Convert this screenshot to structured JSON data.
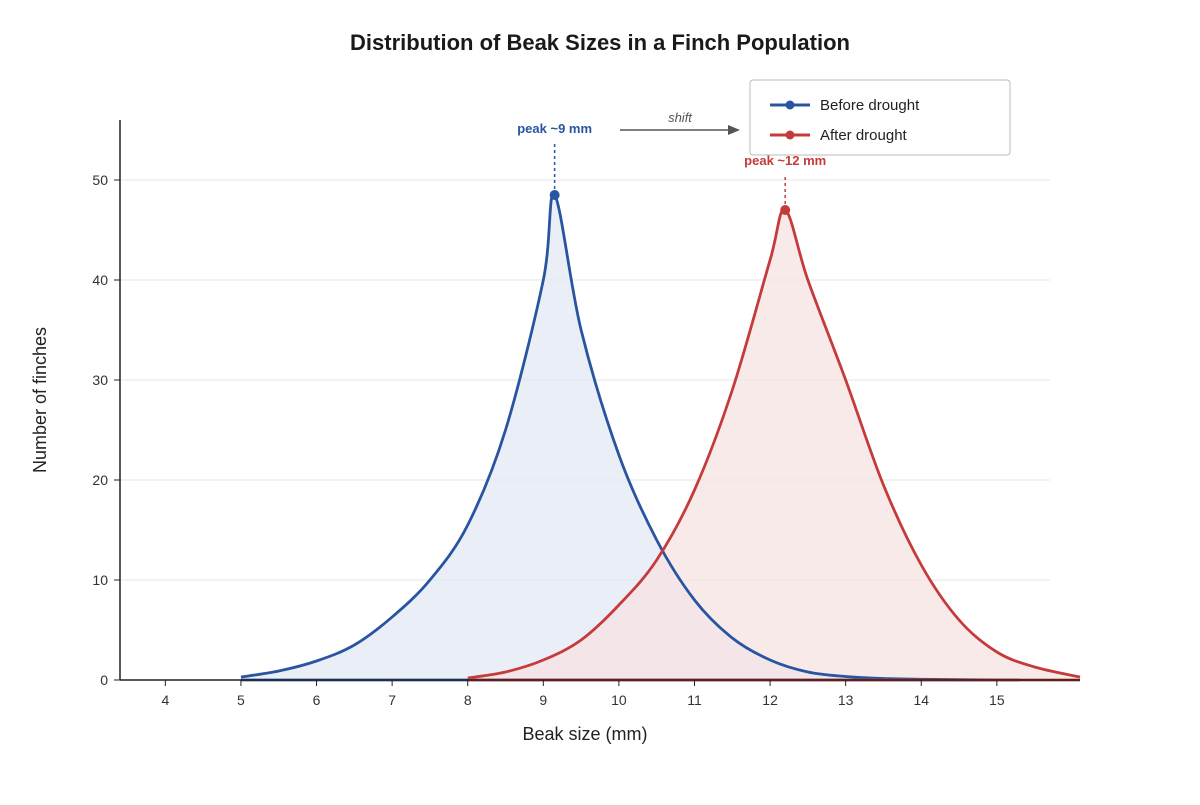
{
  "chart_data": {
    "type": "area",
    "title": "Distribution of Beak Sizes in a Finch Population",
    "xlabel": "Beak size (mm)",
    "ylabel": "Number of finches",
    "xlim": [
      3.4,
      16.1
    ],
    "ylim": [
      0,
      56
    ],
    "xticks": [
      4,
      5,
      6,
      7,
      8,
      9,
      10,
      11,
      12,
      13,
      14,
      15
    ],
    "yticks": [
      0,
      10,
      20,
      30,
      40,
      50
    ],
    "grid": "horizontal",
    "legend_position": "top-right",
    "series": [
      {
        "name": "Before drought",
        "color": "#2955a0",
        "fill": "#e3e9f4",
        "x": [
          5.0,
          5.5,
          6.0,
          6.5,
          7.0,
          7.5,
          8.0,
          8.5,
          9.0,
          9.15,
          9.5,
          10.0,
          10.5,
          11.0,
          11.5,
          12.0,
          12.5,
          13.0,
          13.5,
          14.0,
          14.5,
          15.0,
          15.3
        ],
        "y": [
          0.3,
          0.9,
          1.9,
          3.5,
          6.3,
          10.0,
          15.5,
          25.0,
          40.0,
          48.5,
          35.0,
          22.5,
          14.0,
          8.0,
          4.2,
          2.0,
          0.8,
          0.35,
          0.15,
          0.07,
          0.03,
          0.01,
          0.0
        ]
      },
      {
        "name": "After drought",
        "color": "#c53b3b",
        "fill": "#f7e3e3",
        "x": [
          8.0,
          8.5,
          9.0,
          9.5,
          10.0,
          10.5,
          11.0,
          11.5,
          12.0,
          12.2,
          12.5,
          13.0,
          13.5,
          14.0,
          14.5,
          15.0,
          15.5,
          16.1
        ],
        "y": [
          0.2,
          0.8,
          2.0,
          4.0,
          7.5,
          12.0,
          19.0,
          29.0,
          42.0,
          47.0,
          40.0,
          30.0,
          19.5,
          11.5,
          6.0,
          2.8,
          1.3,
          0.3
        ]
      }
    ],
    "annotations": [
      {
        "text": "peak ~9 mm",
        "x": 9.15,
        "y": 48.5,
        "color": "#2955a0"
      },
      {
        "text": "peak ~12 mm",
        "x": 12.2,
        "y": 47.0,
        "color": "#c53b3b"
      }
    ],
    "arrow_label": "shift"
  }
}
